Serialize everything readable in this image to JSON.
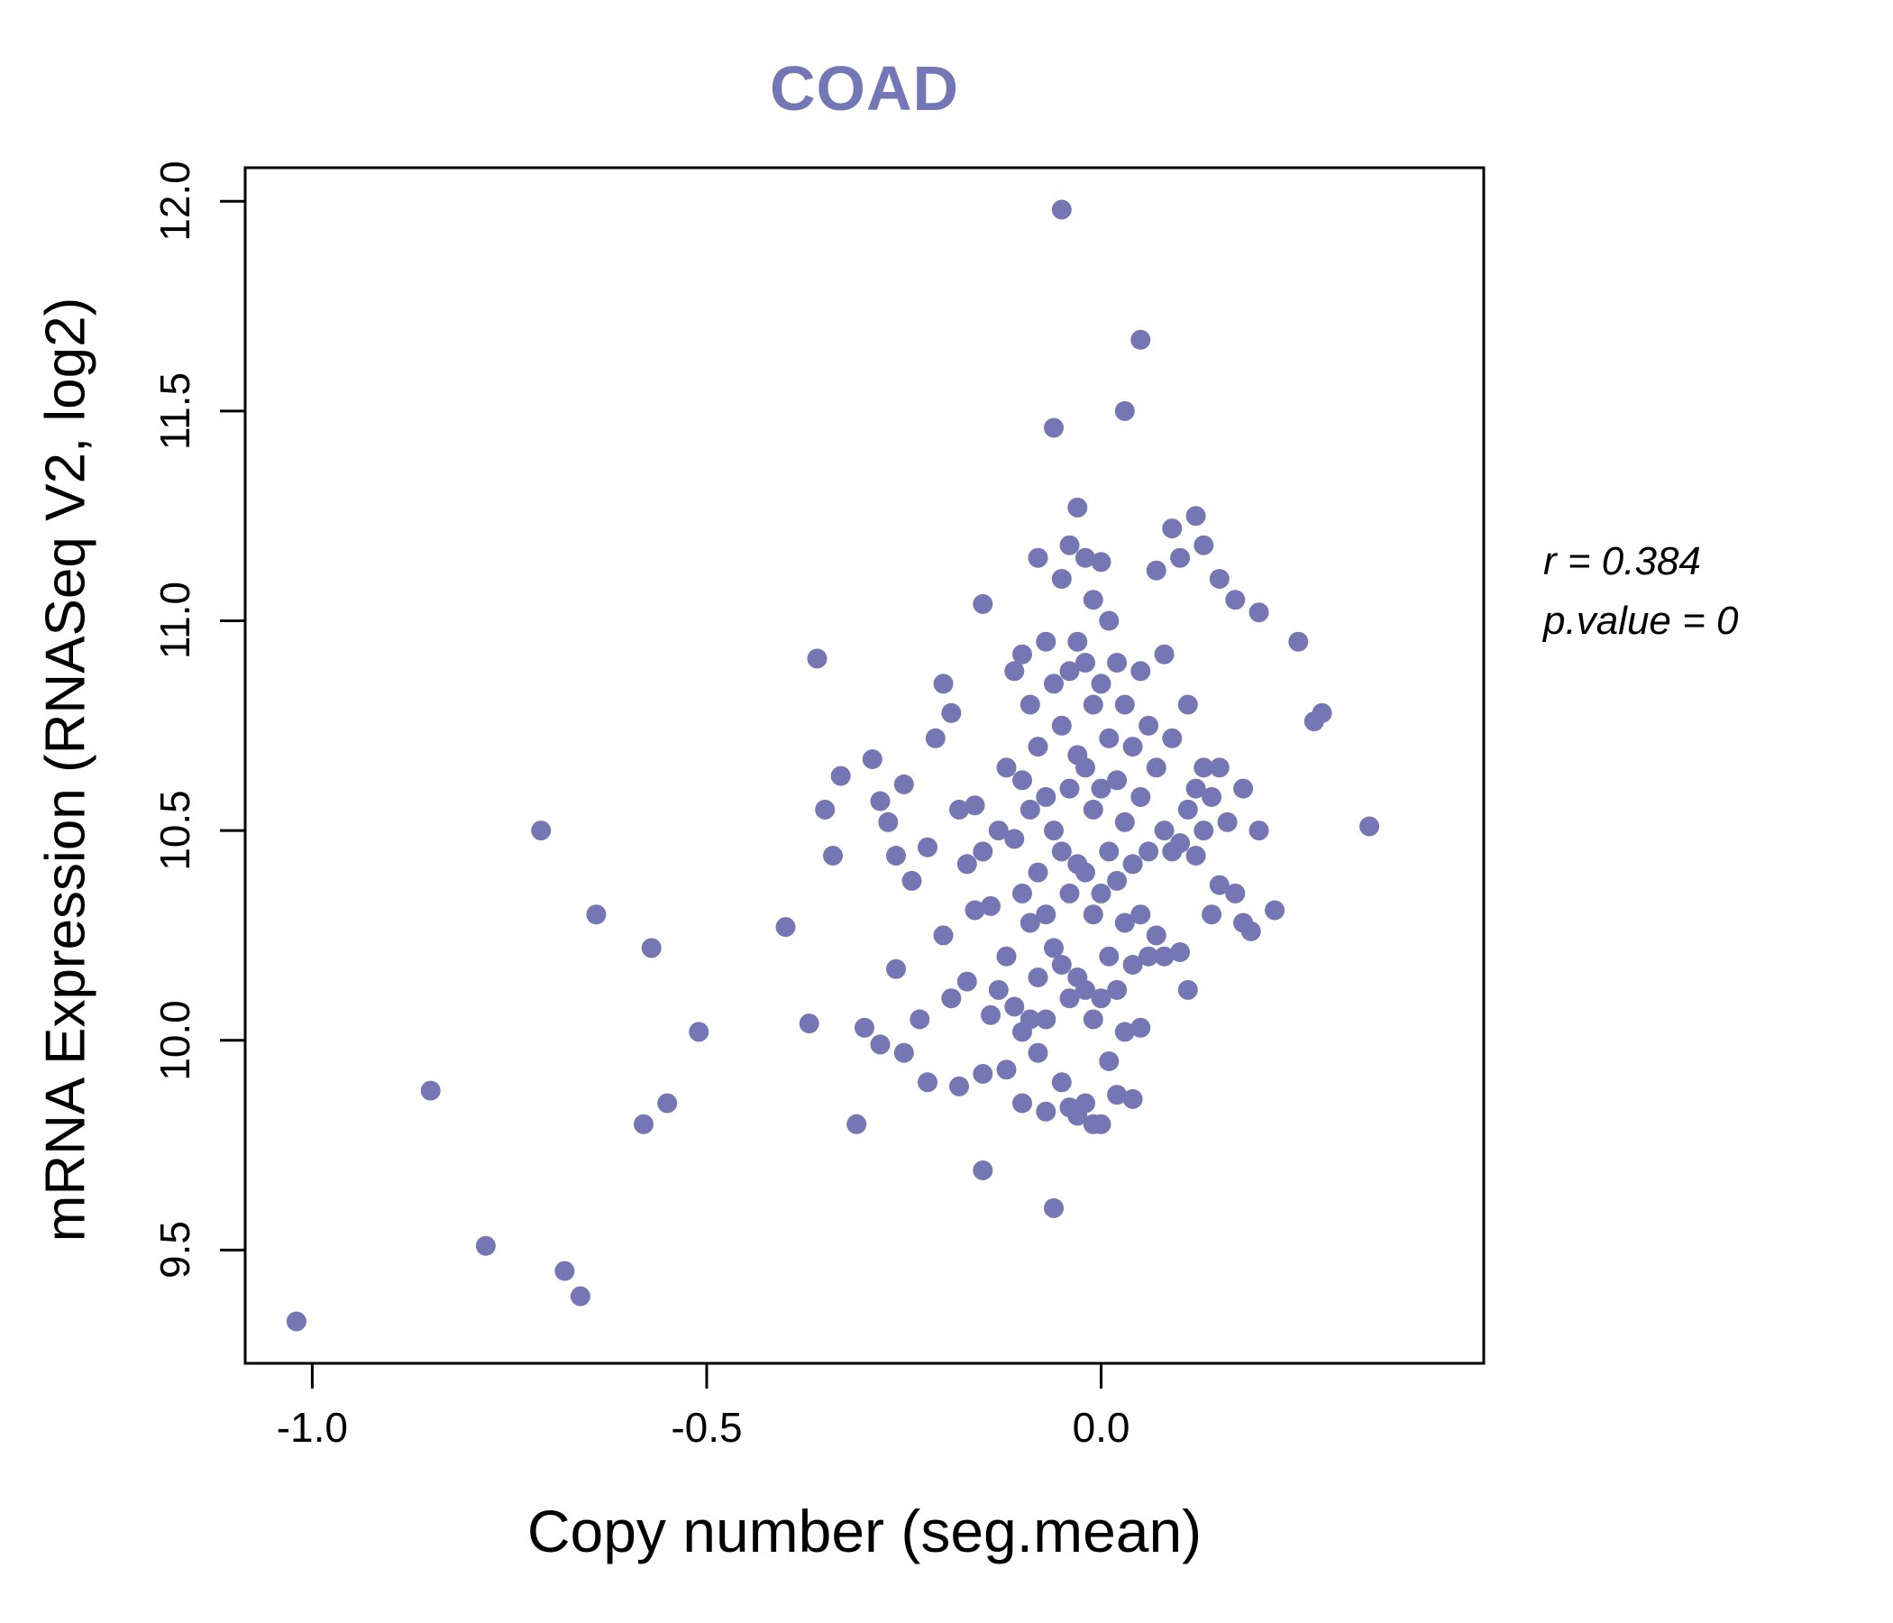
{
  "title": "COAD",
  "title_color": "#7477b6",
  "point_color": "#7577b4",
  "annotation": {
    "line1": "r = 0.384",
    "line2": "p.value = 0"
  },
  "chart_data": {
    "type": "scatter",
    "title": "COAD",
    "xlabel": "Copy number (seg.mean)",
    "ylabel": "mRNA Expression (RNASeq V2, log2)",
    "xlim": [
      -1.085,
      0.485
    ],
    "ylim": [
      9.23,
      12.08
    ],
    "x_ticks": [
      -1.0,
      -0.5,
      0.0
    ],
    "x_tick_labels": [
      "-1.0",
      "-0.5",
      "0.0"
    ],
    "y_ticks": [
      9.5,
      10.0,
      10.5,
      11.0,
      11.5,
      12.0
    ],
    "y_tick_labels": [
      "9.5",
      "10.0",
      "10.5",
      "11.0",
      "11.5",
      "12.0"
    ],
    "grid": false,
    "legend": "none",
    "annotations": [
      "r = 0.384",
      "p.value = 0"
    ],
    "points": [
      [
        -1.02,
        9.33
      ],
      [
        -0.85,
        9.88
      ],
      [
        -0.78,
        9.51
      ],
      [
        -0.71,
        10.5
      ],
      [
        -0.68,
        9.45
      ],
      [
        -0.66,
        9.39
      ],
      [
        -0.64,
        10.3
      ],
      [
        -0.58,
        9.8
      ],
      [
        -0.57,
        10.22
      ],
      [
        -0.55,
        9.85
      ],
      [
        -0.51,
        10.02
      ],
      [
        -0.4,
        10.27
      ],
      [
        -0.37,
        10.04
      ],
      [
        -0.36,
        10.91
      ],
      [
        -0.35,
        10.55
      ],
      [
        -0.34,
        10.44
      ],
      [
        -0.33,
        10.63
      ],
      [
        -0.31,
        9.8
      ],
      [
        -0.3,
        10.03
      ],
      [
        -0.29,
        10.67
      ],
      [
        -0.28,
        10.57
      ],
      [
        -0.28,
        9.99
      ],
      [
        -0.27,
        10.52
      ],
      [
        -0.26,
        10.17
      ],
      [
        -0.26,
        10.44
      ],
      [
        -0.25,
        10.61
      ],
      [
        -0.25,
        9.97
      ],
      [
        -0.24,
        10.38
      ],
      [
        -0.23,
        10.05
      ],
      [
        -0.22,
        9.9
      ],
      [
        -0.22,
        10.46
      ],
      [
        -0.21,
        10.72
      ],
      [
        -0.2,
        10.85
      ],
      [
        -0.2,
        10.25
      ],
      [
        -0.19,
        10.78
      ],
      [
        -0.19,
        10.1
      ],
      [
        -0.18,
        9.89
      ],
      [
        -0.18,
        10.55
      ],
      [
        -0.17,
        10.42
      ],
      [
        -0.17,
        10.14
      ],
      [
        -0.16,
        10.56
      ],
      [
        -0.16,
        10.31
      ],
      [
        -0.15,
        11.04
      ],
      [
        -0.15,
        10.45
      ],
      [
        -0.15,
        9.92
      ],
      [
        -0.15,
        9.69
      ],
      [
        -0.14,
        10.32
      ],
      [
        -0.14,
        10.06
      ],
      [
        -0.13,
        10.12
      ],
      [
        -0.13,
        10.5
      ],
      [
        -0.12,
        10.2
      ],
      [
        -0.12,
        10.65
      ],
      [
        -0.12,
        9.93
      ],
      [
        -0.11,
        10.48
      ],
      [
        -0.11,
        10.08
      ],
      [
        -0.11,
        10.88
      ],
      [
        -0.1,
        10.92
      ],
      [
        -0.1,
        10.62
      ],
      [
        -0.1,
        10.35
      ],
      [
        -0.1,
        10.02
      ],
      [
        -0.1,
        9.85
      ],
      [
        -0.09,
        10.8
      ],
      [
        -0.09,
        10.55
      ],
      [
        -0.09,
        10.28
      ],
      [
        -0.09,
        10.05
      ],
      [
        -0.08,
        11.15
      ],
      [
        -0.08,
        10.7
      ],
      [
        -0.08,
        10.4
      ],
      [
        -0.08,
        10.15
      ],
      [
        -0.08,
        9.97
      ],
      [
        -0.07,
        10.95
      ],
      [
        -0.07,
        10.58
      ],
      [
        -0.07,
        10.3
      ],
      [
        -0.07,
        10.05
      ],
      [
        -0.07,
        9.83
      ],
      [
        -0.06,
        11.46
      ],
      [
        -0.06,
        10.85
      ],
      [
        -0.06,
        10.5
      ],
      [
        -0.06,
        10.22
      ],
      [
        -0.06,
        9.6
      ],
      [
        -0.05,
        11.98
      ],
      [
        -0.05,
        11.1
      ],
      [
        -0.05,
        10.75
      ],
      [
        -0.05,
        10.45
      ],
      [
        -0.05,
        10.18
      ],
      [
        -0.05,
        9.9
      ],
      [
        -0.04,
        11.18
      ],
      [
        -0.04,
        10.88
      ],
      [
        -0.04,
        10.6
      ],
      [
        -0.04,
        10.35
      ],
      [
        -0.04,
        10.1
      ],
      [
        -0.04,
        9.84
      ],
      [
        -0.03,
        11.27
      ],
      [
        -0.03,
        10.95
      ],
      [
        -0.03,
        10.68
      ],
      [
        -0.03,
        10.42
      ],
      [
        -0.03,
        10.15
      ],
      [
        -0.03,
        9.82
      ],
      [
        -0.02,
        11.15
      ],
      [
        -0.02,
        10.9
      ],
      [
        -0.02,
        10.65
      ],
      [
        -0.02,
        10.4
      ],
      [
        -0.02,
        10.12
      ],
      [
        -0.02,
        9.85
      ],
      [
        -0.01,
        11.05
      ],
      [
        -0.01,
        10.8
      ],
      [
        -0.01,
        10.55
      ],
      [
        -0.01,
        10.3
      ],
      [
        -0.01,
        10.05
      ],
      [
        -0.01,
        9.8
      ],
      [
        0.0,
        11.14
      ],
      [
        0.0,
        10.85
      ],
      [
        0.0,
        10.6
      ],
      [
        0.0,
        10.35
      ],
      [
        0.0,
        10.1
      ],
      [
        0.0,
        9.8
      ],
      [
        0.01,
        11.0
      ],
      [
        0.01,
        10.72
      ],
      [
        0.01,
        10.45
      ],
      [
        0.01,
        10.2
      ],
      [
        0.01,
        9.95
      ],
      [
        0.02,
        10.9
      ],
      [
        0.02,
        10.62
      ],
      [
        0.02,
        10.38
      ],
      [
        0.02,
        10.12
      ],
      [
        0.02,
        9.87
      ],
      [
        0.03,
        11.5
      ],
      [
        0.03,
        10.8
      ],
      [
        0.03,
        10.52
      ],
      [
        0.03,
        10.28
      ],
      [
        0.03,
        10.02
      ],
      [
        0.04,
        10.7
      ],
      [
        0.04,
        10.42
      ],
      [
        0.04,
        10.18
      ],
      [
        0.04,
        9.86
      ],
      [
        0.05,
        11.67
      ],
      [
        0.05,
        10.88
      ],
      [
        0.05,
        10.58
      ],
      [
        0.05,
        10.3
      ],
      [
        0.05,
        10.03
      ],
      [
        0.06,
        10.75
      ],
      [
        0.06,
        10.45
      ],
      [
        0.06,
        10.2
      ],
      [
        0.07,
        11.12
      ],
      [
        0.07,
        10.65
      ],
      [
        0.07,
        10.25
      ],
      [
        0.08,
        10.5
      ],
      [
        0.08,
        10.2
      ],
      [
        0.08,
        10.92
      ],
      [
        0.09,
        11.22
      ],
      [
        0.09,
        10.72
      ],
      [
        0.09,
        10.45
      ],
      [
        0.1,
        11.15
      ],
      [
        0.1,
        10.47
      ],
      [
        0.1,
        10.21
      ],
      [
        0.11,
        10.8
      ],
      [
        0.11,
        10.55
      ],
      [
        0.11,
        10.12
      ],
      [
        0.12,
        11.25
      ],
      [
        0.12,
        10.6
      ],
      [
        0.12,
        10.44
      ],
      [
        0.13,
        11.18
      ],
      [
        0.13,
        10.5
      ],
      [
        0.13,
        10.65
      ],
      [
        0.14,
        10.3
      ],
      [
        0.14,
        10.58
      ],
      [
        0.15,
        11.1
      ],
      [
        0.15,
        10.65
      ],
      [
        0.15,
        10.37
      ],
      [
        0.16,
        10.52
      ],
      [
        0.17,
        11.05
      ],
      [
        0.17,
        10.35
      ],
      [
        0.18,
        10.6
      ],
      [
        0.18,
        10.28
      ],
      [
        0.19,
        10.26
      ],
      [
        0.2,
        11.02
      ],
      [
        0.2,
        10.5
      ],
      [
        0.22,
        10.31
      ],
      [
        0.25,
        10.95
      ],
      [
        0.27,
        10.76
      ],
      [
        0.28,
        10.78
      ],
      [
        0.34,
        10.51
      ]
    ]
  }
}
